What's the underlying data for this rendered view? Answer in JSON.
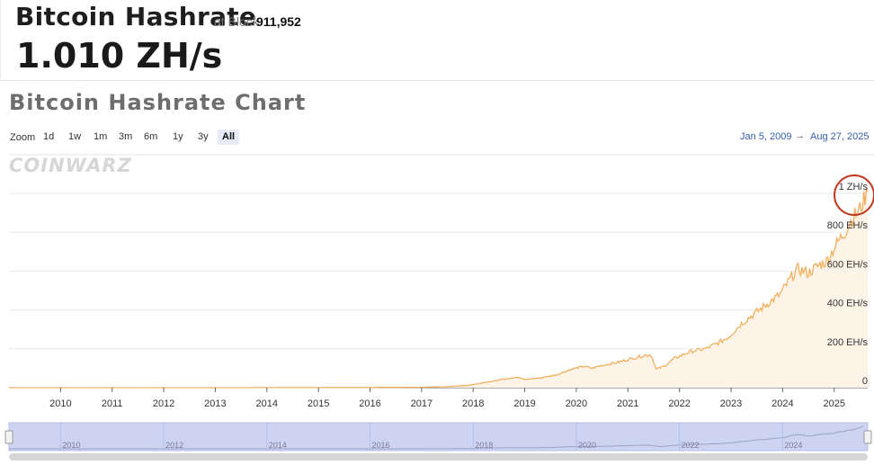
{
  "header": {
    "title": "Bitcoin Hashrate",
    "at_block_label": "at Block",
    "block_number": "911,952",
    "current_value": "1.010 ZH/s"
  },
  "panel": {
    "title": "Bitcoin Hashrate Chart",
    "logo_text": "COINWARZ"
  },
  "zoom": {
    "label": "Zoom",
    "buttons": [
      "1d",
      "1w",
      "1m",
      "3m",
      "6m",
      "1y",
      "3y",
      "All"
    ],
    "active": "All"
  },
  "range": {
    "from": "Jan 5, 2009",
    "arrow": "→",
    "to": "Aug 27, 2025"
  },
  "colors": {
    "line": "#f0b060",
    "fill": "#fdf3e6",
    "highlight_circle": "#c0391f",
    "navigator_bg": "#cdd4f2"
  },
  "chart_data": {
    "type": "area",
    "title": "Bitcoin Hashrate Chart",
    "xlabel": "",
    "ylabel": "",
    "x_tick_labels": [
      "2010",
      "2011",
      "2012",
      "2013",
      "2014",
      "2015",
      "2016",
      "2017",
      "2018",
      "2019",
      "2020",
      "2021",
      "2022",
      "2023",
      "2024",
      "2025"
    ],
    "y_tick_labels": [
      "0",
      "200 EH/s",
      "400 EH/s",
      "600 EH/s",
      "800 EH/s",
      "1 ZH/s"
    ],
    "y_tick_values": [
      0,
      200,
      400,
      600,
      800,
      1000
    ],
    "ylim": [
      0,
      1000
    ],
    "xlim": [
      2009.0,
      2025.65
    ],
    "grid": true,
    "series": [
      {
        "x": [
          2009.0,
          2013.0,
          2016.0,
          2017.0,
          2017.5,
          2017.9,
          2018.2,
          2018.5,
          2018.85,
          2019.0,
          2019.3,
          2019.6,
          2019.9,
          2020.15,
          2020.3,
          2020.5,
          2020.8,
          2021.0,
          2021.3,
          2021.45,
          2021.55,
          2021.7,
          2021.9,
          2022.2,
          2022.5,
          2022.75,
          2022.95,
          2023.2,
          2023.5,
          2023.75,
          2023.95,
          2024.2,
          2024.3,
          2024.5,
          2024.7,
          2024.85,
          2025.0,
          2025.2,
          2025.35,
          2025.5,
          2025.65
        ],
        "y": [
          0,
          0,
          1,
          2,
          5,
          12,
          25,
          40,
          55,
          42,
          50,
          65,
          95,
          110,
          100,
          115,
          130,
          145,
          165,
          170,
          95,
          110,
          150,
          185,
          200,
          230,
          260,
          330,
          390,
          440,
          480,
          580,
          610,
          590,
          630,
          650,
          720,
          800,
          870,
          920,
          1010
        ]
      }
    ],
    "highlight": "1 ZH/s",
    "navigator_labels": [
      "2010",
      "2012",
      "2014",
      "2016",
      "2018",
      "2020",
      "2022",
      "2024"
    ]
  }
}
